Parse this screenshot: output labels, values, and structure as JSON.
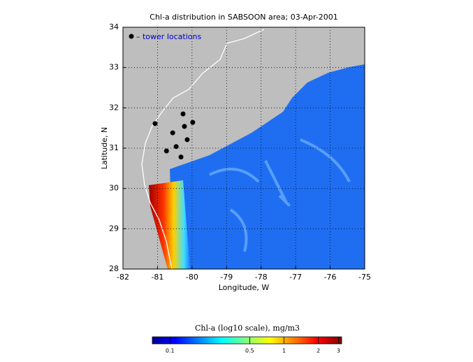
{
  "chart_data": {
    "type": "scatter",
    "title": "Chl-a distribution in SABSOON area; 03-Apr-2001",
    "xlabel": "Longitude, W",
    "ylabel": "Latitude, N",
    "xlim": [
      -82,
      -75
    ],
    "ylim": [
      28,
      34
    ],
    "xticks": [
      -82,
      -81,
      -80,
      -79,
      -78,
      -77,
      -76,
      -75
    ],
    "yticks": [
      28,
      29,
      30,
      31,
      32,
      33,
      34
    ],
    "grid": true,
    "series": [
      {
        "name": "– tower locations",
        "color": "#000000",
        "x": [
          -81.07,
          -80.26,
          -79.98,
          -80.22,
          -80.56,
          -80.14,
          -80.46,
          -80.74,
          -80.32
        ],
        "values": [
          31.61,
          31.85,
          31.64,
          31.54,
          31.38,
          31.21,
          31.04,
          30.93,
          30.78
        ]
      }
    ],
    "colorbar": {
      "title": "Chl-a (log10 scale), mg/m3",
      "log": true,
      "lim": [
        0.07,
        3.2
      ],
      "ticks": [
        0.1,
        0.5,
        1,
        2,
        3
      ]
    }
  }
}
